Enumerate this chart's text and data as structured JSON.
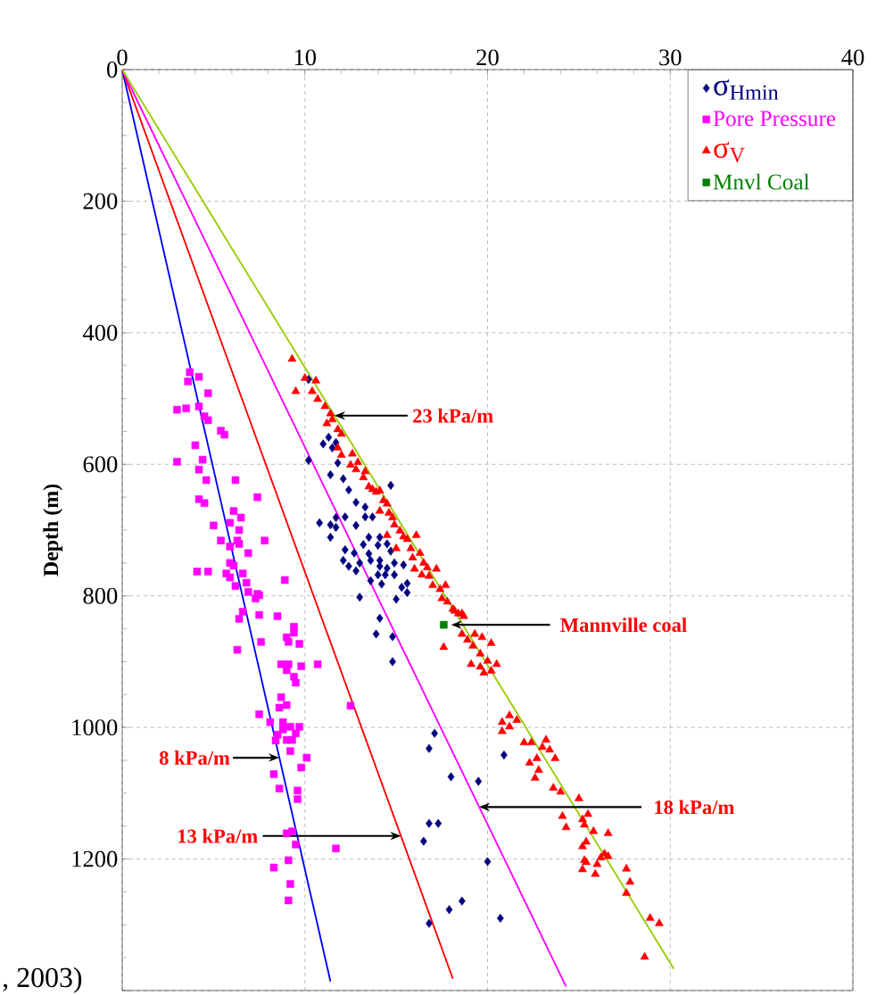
{
  "chart_data": {
    "type": "scatter",
    "ylabel": "Depth (m)",
    "xlim": [
      0,
      40
    ],
    "xticks": [
      0,
      10,
      20,
      30,
      40
    ],
    "ylim": [
      1400,
      0
    ],
    "yticks": [
      0,
      200,
      400,
      600,
      800,
      1000,
      1200,
      {
        "value": 1400,
        "label": null
      }
    ],
    "grid": true,
    "legend": "top right",
    "series": [
      {
        "name": "σ$_{Hmin}$",
        "color": "#000080",
        "marker": "diamond",
        "x": [
          10.2,
          10.2,
          11.3,
          11.0,
          11.5,
          11.7,
          11.8,
          11.4,
          12.1,
          12.4,
          14.7,
          12.8,
          13.3,
          10.8,
          11.4,
          11.7,
          11.7,
          12.2,
          11.4,
          12.8,
          13.3,
          13.7,
          13.5,
          14.1,
          12.2,
          13.2,
          12.7,
          13.5,
          14.0,
          14.5,
          14.7,
          12.1,
          12.4,
          13.0,
          13.6,
          14.1,
          14.1,
          14.5,
          14.9,
          15.4,
          12.8,
          13.6,
          14.0,
          14.4,
          14.9,
          14.2,
          15.6,
          15.3,
          15.6,
          13.0,
          15.0,
          14.1,
          13.9,
          14.8,
          14.8,
          17.1,
          16.8,
          20.9,
          18.0,
          19.5,
          16.8,
          17.3,
          16.5,
          20.0,
          18.6,
          17.9,
          16.8,
          20.7
        ],
        "values": [
          471,
          594,
          559,
          569,
          575,
          567,
          598,
          616,
          622,
          639,
          632,
          658,
          665,
          689,
          692,
          681,
          696,
          680,
          711,
          693,
          680,
          680,
          711,
          711,
          730,
          722,
          735,
          736,
          723,
          721,
          732,
          746,
          755,
          750,
          746,
          746,
          755,
          758,
          750,
          753,
          762,
          777,
          768,
          768,
          768,
          782,
          781,
          787,
          795,
          802,
          805,
          834,
          858,
          862,
          900,
          1009,
          1032,
          1042,
          1075,
          1082,
          1146,
          1146,
          1173,
          1204,
          1264,
          1277,
          1298,
          1290
        ]
      },
      {
        "name": "Pore Pressure",
        "color": "#ff00ff",
        "marker": "square",
        "x": [
          3.7,
          4.2,
          3.6,
          4.7,
          3.0,
          3.5,
          4.2,
          4.5,
          4.7,
          5.4,
          5.6,
          4.0,
          3.0,
          4.4,
          4.2,
          4.6,
          6.2,
          7.4,
          4.2,
          4.5,
          6.1,
          6.5,
          5.9,
          5.0,
          6.4,
          5.4,
          6.3,
          6.4,
          7.8,
          5.9,
          6.9,
          5.9,
          6.1,
          4.1,
          4.7,
          5.7,
          5.9,
          6.6,
          6.8,
          6.2,
          8.9,
          6.9,
          7.4,
          7.3,
          7.5,
          6.6,
          6.4,
          7.5,
          8.5,
          9.4,
          9.4,
          9.0,
          9.1,
          7.6,
          9.7,
          6.3,
          8.7,
          9.1,
          9.0,
          9.8,
          10.7,
          9.4,
          9.5,
          8.7,
          9.0,
          8.6,
          12.5,
          7.5,
          8.1,
          8.8,
          9.2,
          9.7,
          8.8,
          8.5,
          9.5,
          9.0,
          9.3,
          8.4,
          9.2,
          10.1,
          9.8,
          8.3,
          8.6,
          9.6,
          9.6,
          9.0,
          9.3,
          9.5,
          11.7,
          9.1,
          8.3,
          9.2,
          9.1
        ],
        "values": [
          460,
          467,
          474,
          492,
          517,
          515,
          512,
          527,
          533,
          549,
          555,
          571,
          596,
          593,
          608,
          624,
          624,
          650,
          653,
          659,
          671,
          681,
          689,
          693,
          700,
          716,
          716,
          721,
          716,
          725,
          735,
          750,
          754,
          763,
          763,
          766,
          772,
          766,
          780,
          785,
          776,
          794,
          797,
          804,
          799,
          824,
          835,
          829,
          831,
          847,
          856,
          863,
          870,
          870,
          873,
          882,
          904,
          904,
          913,
          907,
          904,
          923,
          932,
          954,
          966,
          970,
          967,
          980,
          992,
          992,
          999,
          999,
          1003,
          1011,
          1009,
          1019,
          1019,
          1020,
          1036,
          1046,
          1061,
          1071,
          1093,
          1096,
          1109,
          1161,
          1158,
          1178,
          1184,
          1202,
          1213,
          1238,
          1263
        ]
      },
      {
        "name": "σ$_{V}$",
        "color": "#ff0000",
        "marker": "triangle",
        "x": [
          9.3,
          10.0,
          9.5,
          10.4,
          10.6,
          10.7,
          11.1,
          11.4,
          11.5,
          11.2,
          11.8,
          12.0,
          11.8,
          12.0,
          12.6,
          12.5,
          12.9,
          12.8,
          13.3,
          13.2,
          13.5,
          13.7,
          13.9,
          14.1,
          14.3,
          14.1,
          14.5,
          14.6,
          14.8,
          14.5,
          14.9,
          15.2,
          15.4,
          15.0,
          15.6,
          16.1,
          15.8,
          15.9,
          16.3,
          16.0,
          16.5,
          16.7,
          16.4,
          16.8,
          17.2,
          17.0,
          17.4,
          17.7,
          17.5,
          17.8,
          18.1,
          18.4,
          18.7,
          18.2,
          18.6,
          18.6,
          17.6,
          18.9,
          19.3,
          19.7,
          20.2,
          19.2,
          19.6,
          19.1,
          19.6,
          20.0,
          20.5,
          19.8,
          20.2,
          20.8,
          21.2,
          21.6,
          20.8,
          21.2,
          22.0,
          22.4,
          23.2,
          23.0,
          23.4,
          22.3,
          22.7,
          23.7,
          22.8,
          22.6,
          23.6,
          24.0,
          25.0,
          24.1,
          24.3,
          25.2,
          25.3,
          25.5,
          25.8,
          26.6,
          25.2,
          25.4,
          26.4,
          26.6,
          26.2,
          25.3,
          25.4,
          26.0,
          25.2,
          25.9,
          27.6,
          27.8,
          27.6,
          28.9,
          29.4,
          28.6
        ],
        "values": [
          440,
          469,
          489,
          489,
          473,
          501,
          512,
          523,
          532,
          538,
          547,
          554,
          575,
          586,
          584,
          601,
          597,
          608,
          611,
          620,
          634,
          638,
          642,
          640,
          655,
          671,
          660,
          674,
          681,
          708,
          692,
          701,
          710,
          728,
          714,
          708,
          728,
          742,
          735,
          759,
          750,
          757,
          768,
          770,
          759,
          784,
          790,
          784,
          804,
          809,
          820,
          827,
          831,
          823,
          827,
          858,
          878,
          867,
          858,
          863,
          872,
          876,
          888,
          904,
          908,
          899,
          904,
          917,
          914,
          992,
          982,
          989,
          1006,
          999,
          1023,
          1023,
          1019,
          1030,
          1034,
          1054,
          1047,
          1047,
          1065,
          1077,
          1092,
          1098,
          1108,
          1135,
          1152,
          1140,
          1148,
          1132,
          1158,
          1161,
          1181,
          1174,
          1192,
          1196,
          1198,
          1202,
          1205,
          1208,
          1216,
          1223,
          1215,
          1235,
          1252,
          1290,
          1298,
          1349
        ]
      },
      {
        "name": "Mnvl Coal",
        "color": "#008000",
        "marker": "square",
        "x": [
          17.6
        ],
        "values": [
          844
        ]
      },
      {
        "type": "line",
        "color": "#0000ff",
        "marker": "none",
        "x": [
          0,
          11.4
        ],
        "values": [
          0,
          1386
        ]
      },
      {
        "type": "line",
        "color": "#ff0000",
        "marker": "none",
        "x": [
          0,
          18.1
        ],
        "values": [
          0,
          1382
        ]
      },
      {
        "type": "line",
        "color": "#ff00ff",
        "marker": "none",
        "x": [
          0,
          24.3
        ],
        "values": [
          0,
          1394
        ]
      },
      {
        "type": "line",
        "color": "#99cc00",
        "marker": "none",
        "x": [
          0,
          30.2
        ],
        "values": [
          0,
          1367
        ]
      }
    ],
    "annotations": [
      {
        "text": "23 kPa/m",
        "x": 11.62,
        "y": 526
      },
      {
        "text": "Mannville coal",
        "x": 18.0,
        "y": 844
      },
      {
        "text": "8 kPa/m",
        "x": 8.6,
        "y": 1046
      },
      {
        "text": "13 kPa/m",
        "x": 15.26,
        "y": 1165
      },
      {
        "text": "18 kPa/m",
        "x": 19.54,
        "y": 1121
      },
      ", 2003)"
    ]
  }
}
